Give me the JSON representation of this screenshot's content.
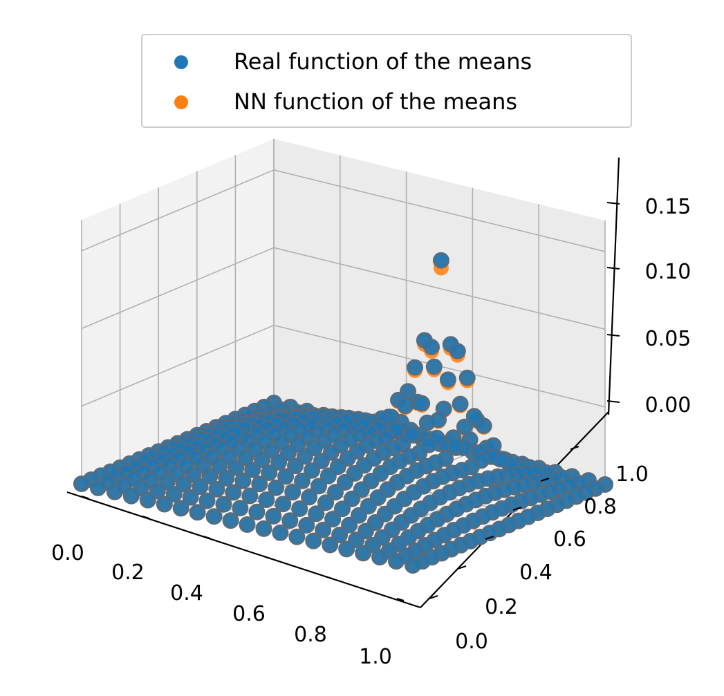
{
  "chart_data": {
    "type": "scatter",
    "projection": "3d",
    "title": "",
    "xlabel": "",
    "ylabel": "",
    "zlabel": "",
    "xlim": [
      0.0,
      1.0
    ],
    "ylim": [
      0.0,
      1.0
    ],
    "zlim": [
      0.0,
      0.17
    ],
    "x_ticks": [
      "0.0",
      "0.2",
      "0.4",
      "0.6",
      "0.8",
      "1.0"
    ],
    "y_ticks": [
      "0.0",
      "0.2",
      "0.4",
      "0.6",
      "0.8",
      "1.0"
    ],
    "z_ticks": [
      "0.00",
      "0.05",
      "0.10",
      "0.15"
    ],
    "grid": true,
    "legend_position": "top-center",
    "grid_x": [
      0.0,
      0.05,
      0.1,
      0.15,
      0.2,
      0.25,
      0.3,
      0.35,
      0.4,
      0.45,
      0.5,
      0.55,
      0.6,
      0.65,
      0.7,
      0.75,
      0.8,
      0.85,
      0.9,
      0.95,
      1.0
    ],
    "grid_y": [
      0.0,
      0.05,
      0.1,
      0.15,
      0.2,
      0.25,
      0.3,
      0.35,
      0.4,
      0.45,
      0.5,
      0.55,
      0.6,
      0.65,
      0.7,
      0.75,
      0.8,
      0.85,
      0.9,
      0.95,
      1.0
    ],
    "series": [
      {
        "name": "Real function of the means",
        "color": "#1f77b4",
        "surface": {
          "peak_value": 0.145,
          "peak_location": [
            0.65,
            0.75
          ],
          "rim_value": 0.05,
          "rim_radius": 0.2,
          "edge_value": 0.0
        }
      },
      {
        "name": "NN function of the means",
        "color": "#ff7f0e",
        "surface": {
          "peak_value": 0.14,
          "peak_location": [
            0.65,
            0.75
          ],
          "rim_value": 0.05,
          "rim_radius": 0.2,
          "edge_value": 0.0
        }
      }
    ]
  }
}
